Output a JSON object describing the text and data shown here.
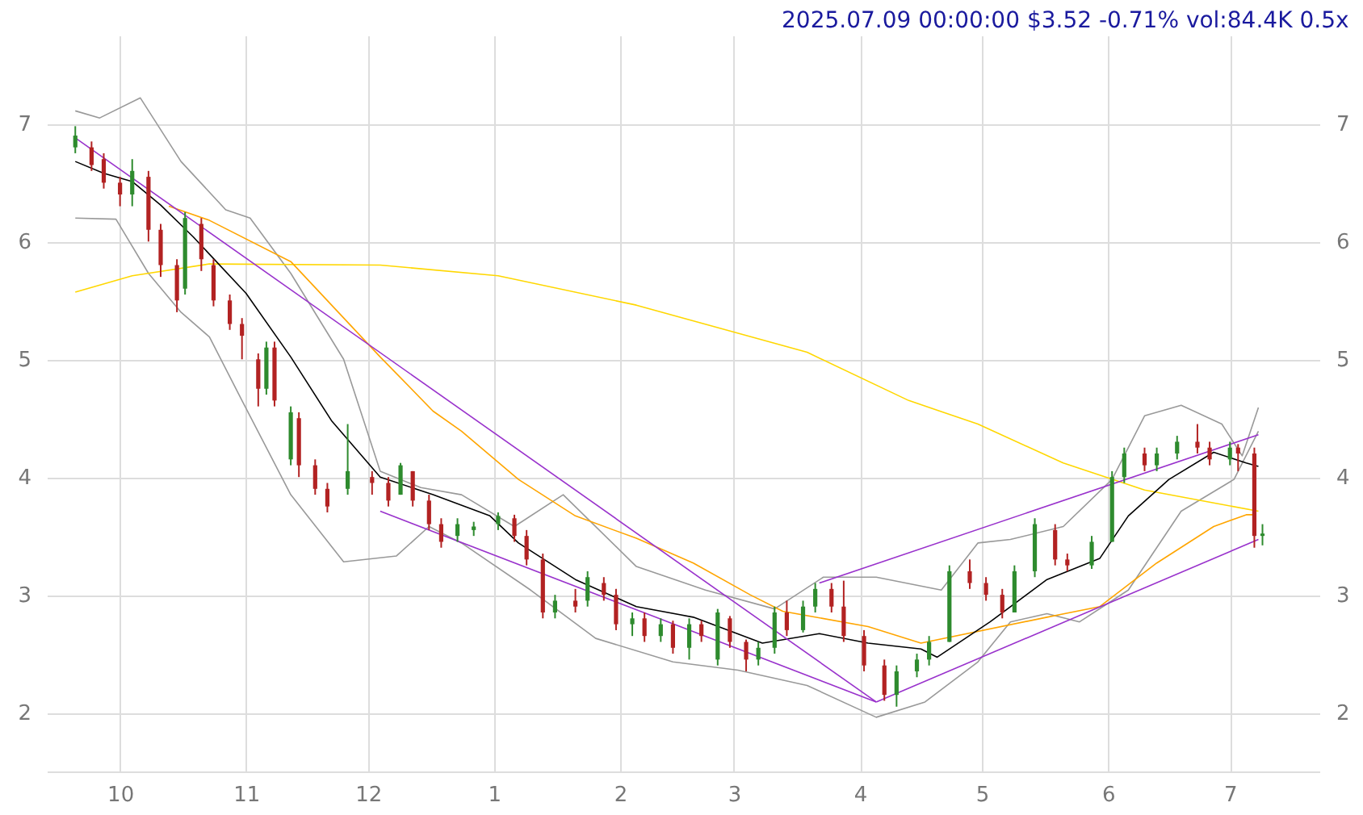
{
  "chart_data": {
    "type": "candlestick",
    "title": "2025.07.09 00:00:00 $3.52 -0.71% vol:84.4K 0.5x",
    "x": [
      "2024-09-20",
      "2024-09-24",
      "2024-09-27",
      "2024-10-01",
      "2024-10-04",
      "2024-10-08",
      "2024-10-11",
      "2024-10-15",
      "2024-10-17",
      "2024-10-21",
      "2024-10-24",
      "2024-10-28",
      "2024-10-31",
      "2024-11-04",
      "2024-11-06",
      "2024-11-08",
      "2024-11-12",
      "2024-11-14",
      "2024-11-18",
      "2024-11-21",
      "2024-11-26",
      "2024-12-02",
      "2024-12-06",
      "2024-12-09",
      "2024-12-12",
      "2024-12-16",
      "2024-12-19",
      "2024-12-23",
      "2024-12-27",
      "2025-01-02",
      "2025-01-06",
      "2025-01-09",
      "2025-01-13",
      "2025-01-16",
      "2025-01-21",
      "2025-01-24",
      "2025-01-28",
      "2025-01-31",
      "2025-02-04",
      "2025-02-07",
      "2025-02-11",
      "2025-02-14",
      "2025-02-18",
      "2025-02-21",
      "2025-02-25",
      "2025-02-28",
      "2025-03-04",
      "2025-03-07",
      "2025-03-11",
      "2025-03-14",
      "2025-03-18",
      "2025-03-21",
      "2025-03-25",
      "2025-03-28",
      "2025-04-02",
      "2025-04-07",
      "2025-04-10",
      "2025-04-15",
      "2025-04-18",
      "2025-04-23",
      "2025-04-28",
      "2025-05-02",
      "2025-05-06",
      "2025-05-09",
      "2025-05-14",
      "2025-05-19",
      "2025-05-22",
      "2025-05-28",
      "2025-06-02",
      "2025-06-05",
      "2025-06-10",
      "2025-06-13",
      "2025-06-18",
      "2025-06-23",
      "2025-06-26",
      "2025-07-01",
      "2025-07-03",
      "2025-07-07",
      "2025-07-09"
    ],
    "ohlc": [
      [
        6.8,
        6.98,
        6.75,
        6.9
      ],
      [
        6.8,
        6.85,
        6.6,
        6.65
      ],
      [
        6.7,
        6.75,
        6.45,
        6.5
      ],
      [
        6.5,
        6.55,
        6.3,
        6.4
      ],
      [
        6.4,
        6.7,
        6.3,
        6.6
      ],
      [
        6.55,
        6.6,
        6.0,
        6.1
      ],
      [
        6.1,
        6.15,
        5.7,
        5.8
      ],
      [
        5.8,
        5.85,
        5.4,
        5.5
      ],
      [
        5.6,
        6.25,
        5.55,
        6.2
      ],
      [
        6.15,
        6.2,
        5.75,
        5.85
      ],
      [
        5.8,
        5.85,
        5.45,
        5.5
      ],
      [
        5.5,
        5.55,
        5.25,
        5.3
      ],
      [
        5.3,
        5.35,
        5.0,
        5.2
      ],
      [
        5.0,
        5.05,
        4.6,
        4.75
      ],
      [
        4.75,
        5.15,
        4.7,
        5.1
      ],
      [
        5.1,
        5.15,
        4.6,
        4.65
      ],
      [
        4.15,
        4.6,
        4.1,
        4.55
      ],
      [
        4.5,
        4.55,
        4.0,
        4.1
      ],
      [
        4.1,
        4.15,
        3.85,
        3.9
      ],
      [
        3.9,
        3.95,
        3.7,
        3.75
      ],
      [
        3.9,
        4.45,
        3.85,
        4.05
      ],
      [
        4.0,
        4.05,
        3.85,
        3.95
      ],
      [
        3.95,
        4.0,
        3.75,
        3.8
      ],
      [
        3.85,
        4.12,
        3.85,
        4.1
      ],
      [
        4.05,
        4.05,
        3.75,
        3.8
      ],
      [
        3.8,
        3.85,
        3.55,
        3.6
      ],
      [
        3.6,
        3.65,
        3.4,
        3.45
      ],
      [
        3.5,
        3.65,
        3.45,
        3.6
      ],
      [
        3.55,
        3.62,
        3.5,
        3.58
      ],
      [
        3.6,
        3.7,
        3.55,
        3.67
      ],
      [
        3.65,
        3.68,
        3.45,
        3.5
      ],
      [
        3.5,
        3.55,
        3.25,
        3.3
      ],
      [
        3.3,
        3.35,
        2.8,
        2.85
      ],
      [
        2.85,
        3.0,
        2.8,
        2.95
      ],
      [
        2.95,
        3.05,
        2.85,
        2.9
      ],
      [
        2.95,
        3.2,
        2.9,
        3.15
      ],
      [
        3.1,
        3.15,
        2.95,
        3.0
      ],
      [
        3.0,
        3.05,
        2.7,
        2.75
      ],
      [
        2.75,
        2.85,
        2.65,
        2.8
      ],
      [
        2.8,
        2.85,
        2.6,
        2.65
      ],
      [
        2.65,
        2.8,
        2.6,
        2.75
      ],
      [
        2.75,
        2.78,
        2.5,
        2.55
      ],
      [
        2.55,
        2.8,
        2.45,
        2.75
      ],
      [
        2.75,
        2.78,
        2.6,
        2.65
      ],
      [
        2.45,
        2.88,
        2.4,
        2.85
      ],
      [
        2.8,
        2.82,
        2.55,
        2.6
      ],
      [
        2.6,
        2.62,
        2.35,
        2.45
      ],
      [
        2.45,
        2.6,
        2.4,
        2.55
      ],
      [
        2.55,
        2.9,
        2.5,
        2.85
      ],
      [
        2.85,
        2.95,
        2.65,
        2.7
      ],
      [
        2.7,
        2.95,
        2.68,
        2.9
      ],
      [
        2.9,
        3.1,
        2.85,
        3.05
      ],
      [
        3.05,
        3.1,
        2.85,
        2.9
      ],
      [
        2.9,
        3.12,
        2.6,
        2.65
      ],
      [
        2.65,
        2.7,
        2.35,
        2.4
      ],
      [
        2.4,
        2.45,
        2.1,
        2.15
      ],
      [
        2.15,
        2.4,
        2.05,
        2.35
      ],
      [
        2.35,
        2.5,
        2.3,
        2.45
      ],
      [
        2.45,
        2.65,
        2.4,
        2.6
      ],
      [
        2.6,
        3.25,
        2.6,
        3.2
      ],
      [
        3.2,
        3.3,
        3.05,
        3.1
      ],
      [
        3.1,
        3.15,
        2.95,
        3.0
      ],
      [
        3.0,
        3.05,
        2.8,
        2.85
      ],
      [
        2.85,
        3.25,
        2.85,
        3.2
      ],
      [
        3.2,
        3.65,
        3.15,
        3.6
      ],
      [
        3.55,
        3.6,
        3.25,
        3.3
      ],
      [
        3.3,
        3.35,
        3.2,
        3.25
      ],
      [
        3.25,
        3.5,
        3.22,
        3.45
      ],
      [
        3.45,
        4.05,
        3.45,
        4.0
      ],
      [
        4.0,
        4.25,
        3.95,
        4.2
      ],
      [
        4.2,
        4.25,
        4.05,
        4.1
      ],
      [
        4.1,
        4.25,
        4.05,
        4.2
      ],
      [
        4.2,
        4.35,
        4.15,
        4.3
      ],
      [
        4.3,
        4.45,
        4.2,
        4.25
      ],
      [
        4.25,
        4.3,
        4.1,
        4.15
      ],
      [
        4.15,
        4.3,
        4.1,
        4.25
      ],
      [
        4.25,
        4.28,
        4.05,
        4.2
      ],
      [
        4.2,
        4.25,
        3.4,
        3.5
      ],
      [
        3.5,
        3.6,
        3.42,
        3.52
      ]
    ],
    "colors": [
      "#2e8b2e",
      "#b22222",
      "#b22222",
      "#b22222",
      "#2e8b2e",
      "#b22222",
      "#b22222",
      "#b22222",
      "#2e8b2e",
      "#b22222",
      "#b22222",
      "#b22222",
      "#b22222",
      "#b22222",
      "#2e8b2e",
      "#b22222",
      "#2e8b2e",
      "#b22222",
      "#b22222",
      "#b22222",
      "#2e8b2e",
      "#b22222",
      "#b22222",
      "#2e8b2e",
      "#b22222",
      "#b22222",
      "#b22222",
      "#2e8b2e",
      "#2e8b2e",
      "#2e8b2e",
      "#b22222",
      "#b22222",
      "#b22222",
      "#2e8b2e",
      "#b22222",
      "#2e8b2e",
      "#b22222",
      "#b22222",
      "#2e8b2e",
      "#b22222",
      "#2e8b2e",
      "#b22222",
      "#2e8b2e",
      "#b22222",
      "#2e8b2e",
      "#b22222",
      "#b22222",
      "#2e8b2e",
      "#2e8b2e",
      "#b22222",
      "#2e8b2e",
      "#2e8b2e",
      "#b22222",
      "#b22222",
      "#b22222",
      "#b22222",
      "#2e8b2e",
      "#2e8b2e",
      "#2e8b2e",
      "#2e8b2e",
      "#b22222",
      "#b22222",
      "#b22222",
      "#2e8b2e",
      "#2e8b2e",
      "#b22222",
      "#b22222",
      "#2e8b2e",
      "#2e8b2e",
      "#2e8b2e",
      "#b22222",
      "#2e8b2e",
      "#2e8b2e",
      "#b22222",
      "#b22222",
      "#2e8b2e",
      "#b22222",
      "#b22222",
      "#2e8b2e"
    ],
    "series": [
      {
        "type": "line",
        "color": "#999999",
        "x": [
          "2024-09-20",
          "2024-09-26",
          "2024-10-06",
          "2024-10-16",
          "2024-10-27",
          "2024-11-02",
          "2024-11-12",
          "2024-11-25",
          "2024-12-04",
          "2024-12-14",
          "2024-12-24",
          "2025-01-06",
          "2025-01-18",
          "2025-02-05",
          "2025-02-22",
          "2025-03-11",
          "2025-03-23",
          "2025-04-05",
          "2025-04-21",
          "2025-04-30",
          "2025-05-08",
          "2025-05-21",
          "2025-06-02",
          "2025-06-10",
          "2025-06-19",
          "2025-06-29",
          "2025-07-04",
          "2025-07-08"
        ],
        "values": [
          7.11,
          7.05,
          7.22,
          6.68,
          6.27,
          6.2,
          5.73,
          5.0,
          4.05,
          3.91,
          3.85,
          3.58,
          3.85,
          3.24,
          3.04,
          2.88,
          3.15,
          3.15,
          3.04,
          3.44,
          3.47,
          3.58,
          3.98,
          4.52,
          4.61,
          4.45,
          4.18,
          4.59
        ]
      },
      {
        "type": "line",
        "color": "#999999",
        "x": [
          "2024-09-20",
          "2024-09-30",
          "2024-10-08",
          "2024-10-16",
          "2024-10-23",
          "2024-10-31",
          "2024-11-12",
          "2024-11-25",
          "2024-12-08",
          "2024-12-16",
          "2024-12-24",
          "2025-01-10",
          "2025-01-26",
          "2025-02-14",
          "2025-03-02",
          "2025-03-19",
          "2025-04-05",
          "2025-04-17",
          "2025-04-30",
          "2025-05-08",
          "2025-05-17",
          "2025-05-25",
          "2025-06-06",
          "2025-06-19",
          "2025-07-02",
          "2025-07-08"
        ],
        "values": [
          6.2,
          6.19,
          5.73,
          5.4,
          5.19,
          4.65,
          3.85,
          3.28,
          3.33,
          3.58,
          3.44,
          3.04,
          2.63,
          2.43,
          2.36,
          2.23,
          1.96,
          2.09,
          2.43,
          2.77,
          2.84,
          2.77,
          3.04,
          3.71,
          3.98,
          4.39
        ]
      },
      {
        "type": "line",
        "color": "#ffd700",
        "x": [
          "2024-09-20",
          "2024-10-04",
          "2024-10-23",
          "2024-12-04",
          "2025-01-02",
          "2025-02-05",
          "2025-03-19",
          "2025-04-13",
          "2025-04-30",
          "2025-05-21",
          "2025-06-10",
          "2025-06-27",
          "2025-07-08"
        ],
        "values": [
          5.57,
          5.71,
          5.81,
          5.8,
          5.71,
          5.46,
          5.06,
          4.65,
          4.45,
          4.12,
          3.89,
          3.78,
          3.71
        ]
      },
      {
        "type": "line",
        "color": "#ffa500",
        "x": [
          "2024-10-13",
          "2024-10-23",
          "2024-11-12",
          "2024-12-04",
          "2024-12-17",
          "2024-12-24",
          "2025-01-07",
          "2025-01-21",
          "2025-02-05",
          "2025-02-19",
          "2025-03-05",
          "2025-03-13",
          "2025-04-03",
          "2025-04-16",
          "2025-05-17",
          "2025-05-30",
          "2025-06-13",
          "2025-06-27",
          "2025-07-05",
          "2025-07-07"
        ],
        "values": [
          6.3,
          6.18,
          5.83,
          5.02,
          4.56,
          4.39,
          3.98,
          3.67,
          3.48,
          3.27,
          3.0,
          2.86,
          2.73,
          2.59,
          2.81,
          2.9,
          3.27,
          3.58,
          3.68,
          3.68
        ]
      },
      {
        "type": "line",
        "color": "#000000",
        "x": [
          "2024-09-20",
          "2024-09-27",
          "2024-10-04",
          "2024-10-11",
          "2024-10-19",
          "2024-11-01",
          "2024-11-12",
          "2024-11-22",
          "2024-12-04",
          "2024-12-17",
          "2024-12-31",
          "2025-01-07",
          "2025-01-21",
          "2025-02-05",
          "2025-02-19",
          "2025-03-08",
          "2025-03-22",
          "2025-04-03",
          "2025-04-16",
          "2025-04-20",
          "2025-05-03",
          "2025-05-17",
          "2025-05-30",
          "2025-06-06",
          "2025-06-16",
          "2025-06-27",
          "2025-07-05",
          "2025-07-08"
        ],
        "values": [
          6.68,
          6.58,
          6.51,
          6.31,
          6.04,
          5.56,
          5.02,
          4.48,
          4.0,
          3.85,
          3.67,
          3.44,
          3.13,
          2.9,
          2.81,
          2.59,
          2.67,
          2.59,
          2.54,
          2.47,
          2.77,
          3.13,
          3.31,
          3.67,
          3.98,
          4.21,
          4.12,
          4.09
        ]
      },
      {
        "type": "line",
        "color": "#9932cc",
        "x": [
          "2024-09-20",
          "2025-04-05"
        ],
        "values": [
          6.88,
          2.09
        ]
      },
      {
        "type": "line",
        "color": "#9932cc",
        "x": [
          "2024-12-04",
          "2025-04-05"
        ],
        "values": [
          3.71,
          2.09
        ]
      },
      {
        "type": "line",
        "color": "#9932cc",
        "x": [
          "2025-04-05",
          "2025-07-08"
        ],
        "values": [
          2.09,
          3.47
        ]
      },
      {
        "type": "line",
        "color": "#9932cc",
        "x": [
          "2025-03-22",
          "2025-07-08"
        ],
        "values": [
          3.1,
          4.36
        ]
      }
    ],
    "xlim": [
      "2024-09-13",
      "2025-07-23"
    ],
    "xticks": [
      {
        "value": "2024-10-01",
        "label": "10"
      },
      {
        "value": "2024-11-01",
        "label": "11"
      },
      {
        "value": "2024-12-01",
        "label": "12"
      },
      {
        "value": "2025-01-01",
        "label": "1"
      },
      {
        "value": "2025-02-01",
        "label": "2"
      },
      {
        "value": "2025-03-01",
        "label": "3"
      },
      {
        "value": "2025-04-01",
        "label": "4"
      },
      {
        "value": "2025-05-01",
        "label": "5"
      },
      {
        "value": "2025-06-01",
        "label": "6"
      },
      {
        "value": "2025-07-01",
        "label": "7"
      }
    ],
    "ylim": [
      1.5,
      7.75
    ],
    "yticks": [
      2,
      3,
      4,
      5,
      6,
      7
    ],
    "y2lim": [
      1.5,
      7.75
    ],
    "y2ticks": [
      2,
      3,
      4,
      5,
      6,
      7
    ],
    "grid": true
  }
}
